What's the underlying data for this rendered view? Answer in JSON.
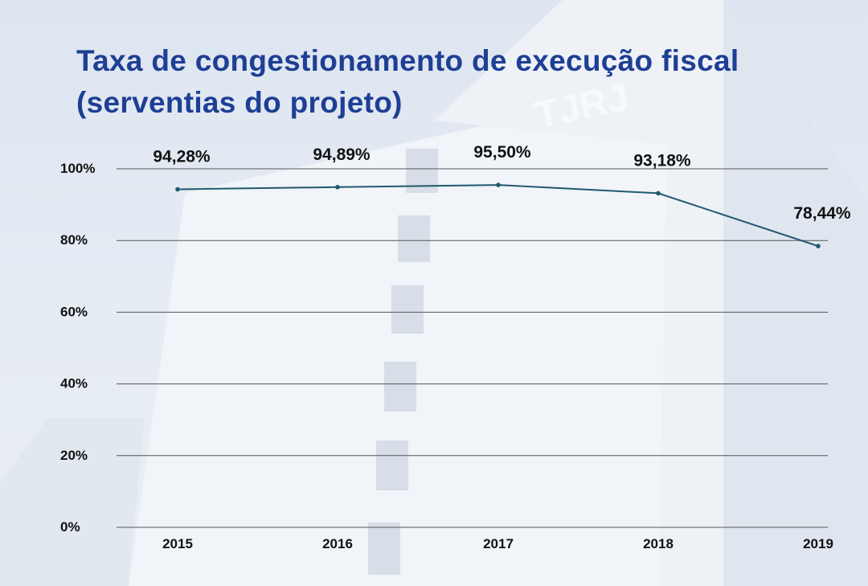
{
  "title_line1": "Taxa de congestionamento de execução fiscal",
  "title_line2": "(serventias do projeto)",
  "background_sign": "TJRJ",
  "colors": {
    "title": "#1e3f94",
    "line": "#1f5a6e",
    "grid": "#555555"
  },
  "chart_data": {
    "type": "line",
    "title": "Taxa de congestionamento de execução fiscal (serventias do projeto)",
    "xlabel": "",
    "ylabel": "",
    "categories": [
      "2015",
      "2016",
      "2017",
      "2018",
      "2019"
    ],
    "series": [
      {
        "name": "Taxa de congestionamento",
        "values": [
          94.28,
          94.89,
          95.5,
          93.18,
          78.44
        ]
      }
    ],
    "data_labels": [
      "94,28%",
      "94,89%",
      "95,50%",
      "93,18%",
      "78,44%"
    ],
    "yticks": [
      0,
      20,
      40,
      60,
      80,
      100
    ],
    "ytick_labels": [
      "0%",
      "20%",
      "40%",
      "60%",
      "80%",
      "100%"
    ],
    "ylim": [
      0,
      100
    ],
    "grid": true,
    "legend": "none"
  }
}
